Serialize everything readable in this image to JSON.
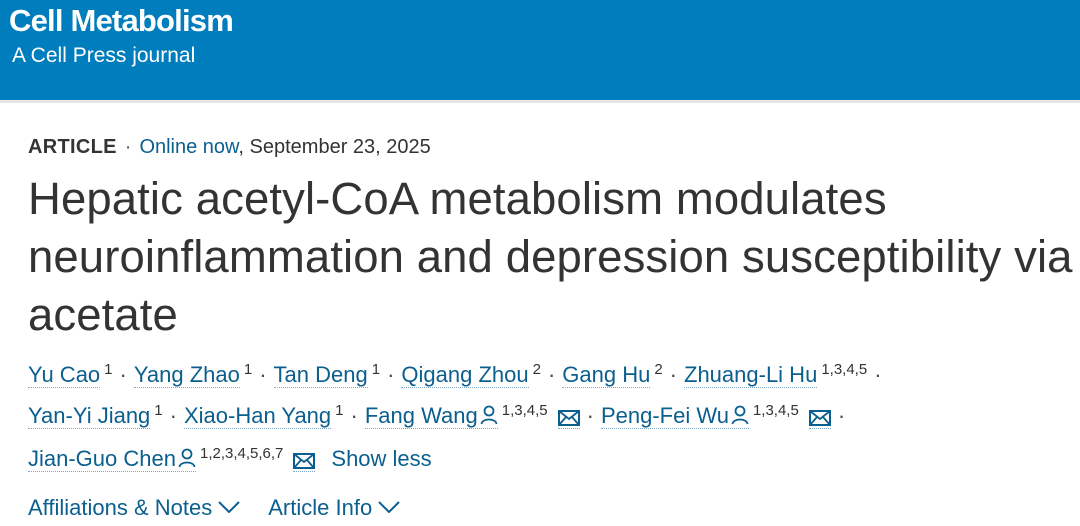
{
  "header": {
    "journal": "Cell Metabolism",
    "subtitle": "A Cell Press journal",
    "brand_color": "#007dbc"
  },
  "meta": {
    "type": "ARTICLE",
    "status_link": "Online now",
    "date": ", September 23, 2025"
  },
  "title": "Hepatic acetyl-CoA metabolism modulates neuroinflammation and depression susceptibility via acetate",
  "authors": [
    {
      "name": "Yu Cao",
      "sup": "1"
    },
    {
      "name": "Yang Zhao",
      "sup": "1"
    },
    {
      "name": "Tan Deng",
      "sup": "1"
    },
    {
      "name": "Qigang Zhou",
      "sup": "2"
    },
    {
      "name": "Gang Hu",
      "sup": "2"
    },
    {
      "name": "Zhuang-Li Hu",
      "sup": "1,3,4,5"
    },
    {
      "name": "Yan-Yi Jiang",
      "sup": "1"
    },
    {
      "name": "Xiao-Han Yang",
      "sup": "1"
    },
    {
      "name": "Fang Wang",
      "sup": "1,3,4,5",
      "corresponding": true
    },
    {
      "name": "Peng-Fei Wu",
      "sup": "1,3,4,5",
      "corresponding": true
    },
    {
      "name": "Jian-Guo Chen",
      "sup": "1,2,3,4,5,6,7",
      "corresponding": true
    }
  ],
  "show_less": "Show less",
  "tabs": [
    "Affiliations & Notes",
    "Article Info"
  ]
}
